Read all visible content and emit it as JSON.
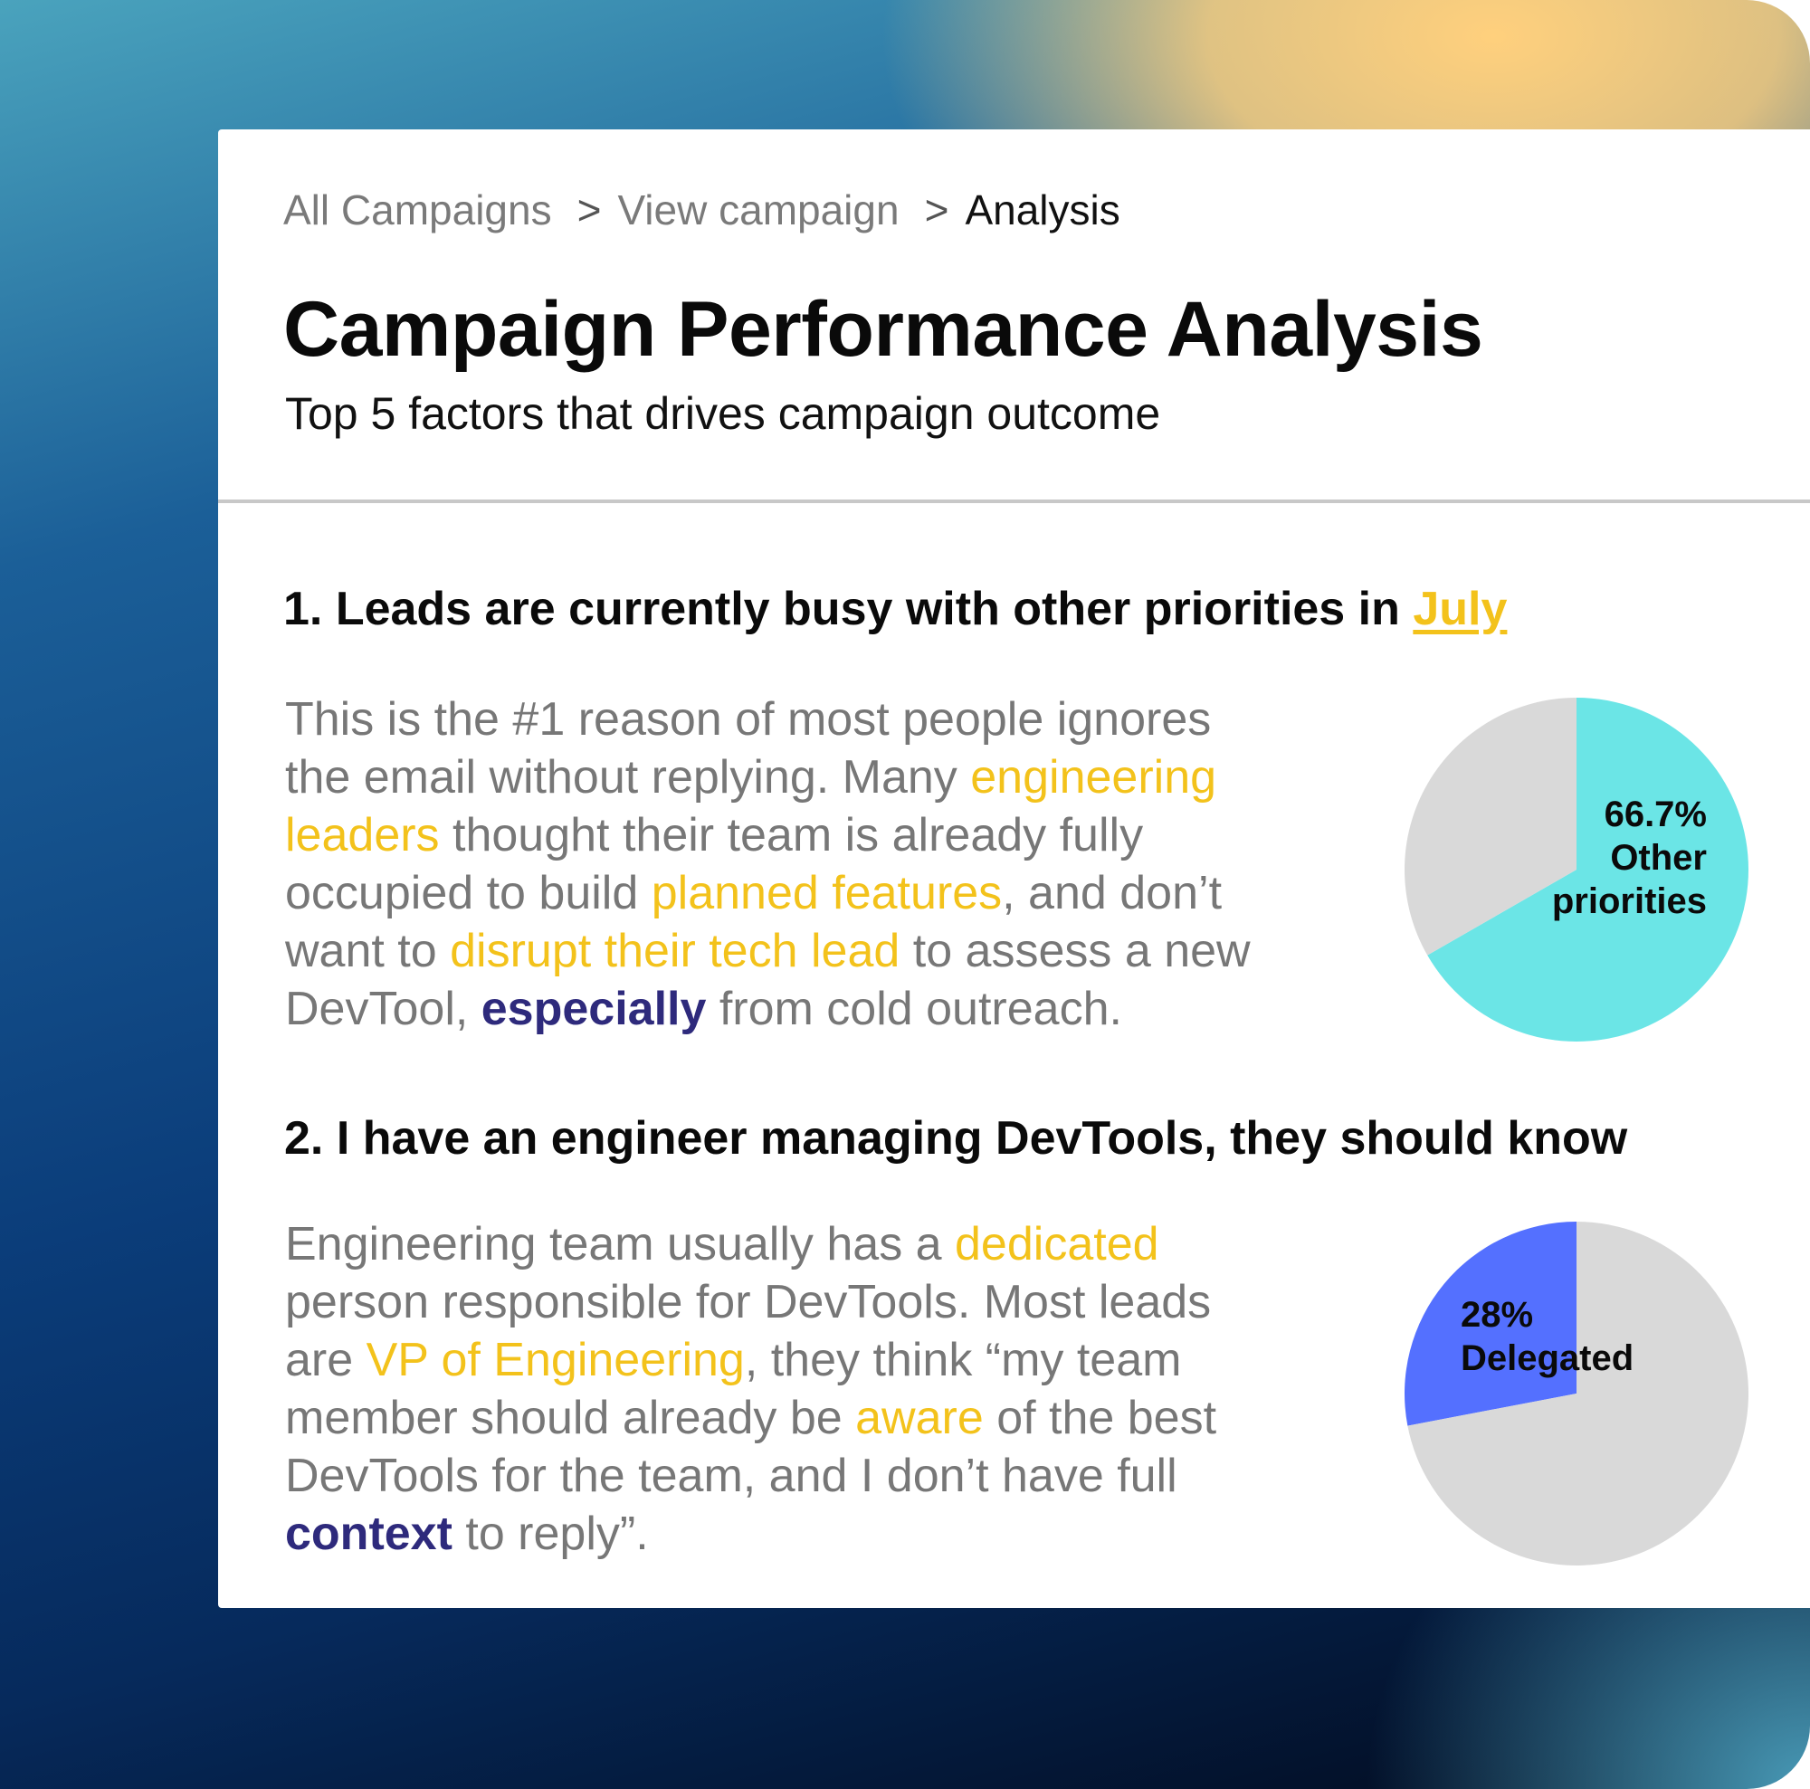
{
  "colors": {
    "accent_yellow": "#f3c21b",
    "emphasis_navy": "#2e2a7c",
    "body_gray": "#777777",
    "pie_cyan": "#6be5e6",
    "pie_blue": "#5470ff",
    "pie_gray": "#d9d9d9"
  },
  "breadcrumb": {
    "items": [
      {
        "label": "All Campaigns"
      },
      {
        "label": "View campaign"
      },
      {
        "label": "Analysis"
      }
    ],
    "separator": ">"
  },
  "header": {
    "title": "Campaign Performance Analysis",
    "subtitle": "Top 5 factors that drives campaign outcome"
  },
  "sections": [
    {
      "heading_prefix": "1. Leads are currently busy with other priorities in ",
      "heading_link": "July",
      "paragraph": [
        [
          {
            "t": "This is the #1 reason of most people ignores",
            "s": ""
          }
        ],
        [
          {
            "t": "the email without replying. Many ",
            "s": ""
          },
          {
            "t": "engineering",
            "s": "hl"
          }
        ],
        [
          {
            "t": "leaders",
            "s": "hl"
          },
          {
            "t": " thought their team is already fully",
            "s": ""
          }
        ],
        [
          {
            "t": "occupied to build ",
            "s": ""
          },
          {
            "t": "planned features",
            "s": "hl"
          },
          {
            "t": ", and don’t",
            "s": ""
          }
        ],
        [
          {
            "t": "want to ",
            "s": ""
          },
          {
            "t": "disrupt their tech lead",
            "s": "hl"
          },
          {
            "t": " to assess a new",
            "s": ""
          }
        ],
        [
          {
            "t": "DevTool, ",
            "s": ""
          },
          {
            "t": "especially",
            "s": "em"
          },
          {
            "t": " from cold outreach.",
            "s": ""
          }
        ]
      ]
    },
    {
      "heading": "2. I have an engineer managing DevTools, they should know",
      "paragraph": [
        [
          {
            "t": "Engineering team usually has a ",
            "s": ""
          },
          {
            "t": "dedicated",
            "s": "hl"
          }
        ],
        [
          {
            "t": "person responsible for DevTools. Most leads",
            "s": ""
          }
        ],
        [
          {
            "t": "are ",
            "s": ""
          },
          {
            "t": "VP of Engineering",
            "s": "hl"
          },
          {
            "t": ", they think “my team",
            "s": ""
          }
        ],
        [
          {
            "t": "member should already be ",
            "s": ""
          },
          {
            "t": "aware",
            "s": "hl"
          },
          {
            "t": " of the best",
            "s": ""
          }
        ],
        [
          {
            "t": "DevTools for the team, and I don’t have full",
            "s": ""
          }
        ],
        [
          {
            "t": "context",
            "s": "em"
          },
          {
            "t": " to reply”.",
            "s": ""
          }
        ]
      ]
    }
  ],
  "chart_data": [
    {
      "type": "pie",
      "slices": [
        {
          "name": "Other priorities",
          "value": 66.7,
          "color": "#6be5e6"
        },
        {
          "name": "",
          "value": 33.3,
          "color": "#d9d9d9"
        }
      ],
      "labels": [
        "66.7%",
        "Other",
        "priorities"
      ]
    },
    {
      "type": "pie",
      "slices": [
        {
          "name": "Delegated",
          "value": 28,
          "color": "#5470ff"
        },
        {
          "name": "",
          "value": 72,
          "color": "#d9d9d9"
        }
      ],
      "labels": [
        "28%",
        "Delegated"
      ]
    }
  ]
}
